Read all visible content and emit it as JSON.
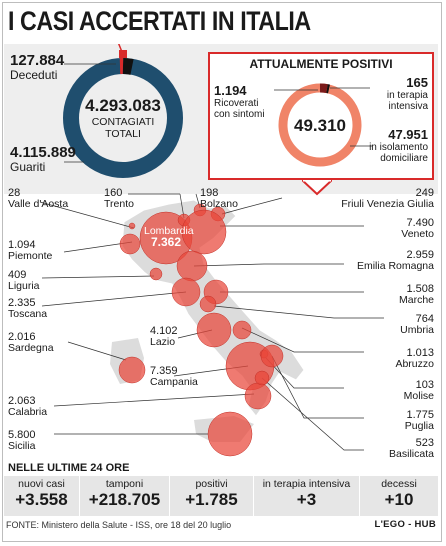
{
  "title": "I CASI ACCERTATI IN ITALIA",
  "totals": {
    "deceduti": {
      "value": "127.884",
      "label": "Deceduti"
    },
    "guariti": {
      "value": "4.115.889",
      "label": "Guariti"
    },
    "contagiati": {
      "value": "4.293.083",
      "label_line1": "CONTAGIATI",
      "label_line2": "TOTALI"
    }
  },
  "attualmente_positivi": {
    "title": "ATTUALMENTE POSITIVI",
    "total": "49.310",
    "ricoverati": {
      "value": "1.194",
      "line1": "Ricoverati",
      "line2": "con sintomi"
    },
    "terapia": {
      "value": "165",
      "line1": "in terapia",
      "line2": "intensiva"
    },
    "isolamento": {
      "value": "47.951",
      "line1": "in isolamento",
      "line2": "domiciliare"
    }
  },
  "regions": {
    "valle_aosta": {
      "value": "28",
      "name": "Valle d'Aosta"
    },
    "trento": {
      "value": "160",
      "name": "Trento"
    },
    "bolzano": {
      "value": "198",
      "name": "Bolzano"
    },
    "friuli": {
      "value": "249",
      "name": "Friuli Venezia Giulia"
    },
    "veneto": {
      "value": "7.490",
      "name": "Veneto"
    },
    "piemonte": {
      "value": "1.094",
      "name": "Piemonte"
    },
    "lombardia": {
      "value": "7.362",
      "name": "Lombardia"
    },
    "emilia": {
      "value": "2.959",
      "name": "Emilia Romagna"
    },
    "liguria": {
      "value": "409",
      "name": "Liguria"
    },
    "marche": {
      "value": "1.508",
      "name": "Marche"
    },
    "toscana": {
      "value": "2.335",
      "name": "Toscana"
    },
    "umbria": {
      "value": "764",
      "name": "Umbria"
    },
    "sardegna": {
      "value": "2.016",
      "name": "Sardegna"
    },
    "lazio": {
      "value": "4.102",
      "name": "Lazio"
    },
    "abruzzo": {
      "value": "1.013",
      "name": "Abruzzo"
    },
    "campania": {
      "value": "7.359",
      "name": "Campania"
    },
    "molise": {
      "value": "103",
      "name": "Molise"
    },
    "calabria": {
      "value": "2.063",
      "name": "Calabria"
    },
    "puglia": {
      "value": "1.775",
      "name": "Puglia"
    },
    "sicilia": {
      "value": "5.800",
      "name": "Sicilia"
    },
    "basilicata": {
      "value": "523",
      "name": "Basilicata"
    }
  },
  "last24": {
    "title": "NELLE ULTIME 24 ORE",
    "items": [
      {
        "label": "nuovi casi",
        "value": "+3.558"
      },
      {
        "label": "tamponi",
        "value": "+218.705"
      },
      {
        "label": "positivi",
        "value": "+1.785"
      },
      {
        "label": "in terapia intensiva",
        "value": "+3"
      },
      {
        "label": "decessi",
        "value": "+10"
      }
    ]
  },
  "source": "FONTE: Ministero della Salute - ISS, ore 18 del 20 luglio",
  "brand": "L'EGO - HUB",
  "colors": {
    "navy": "#1f4e6e",
    "salmon": "#f08468",
    "red": "#d92a2a",
    "dark_red": "#7a1a1a",
    "panel": "#eeeeee"
  }
}
